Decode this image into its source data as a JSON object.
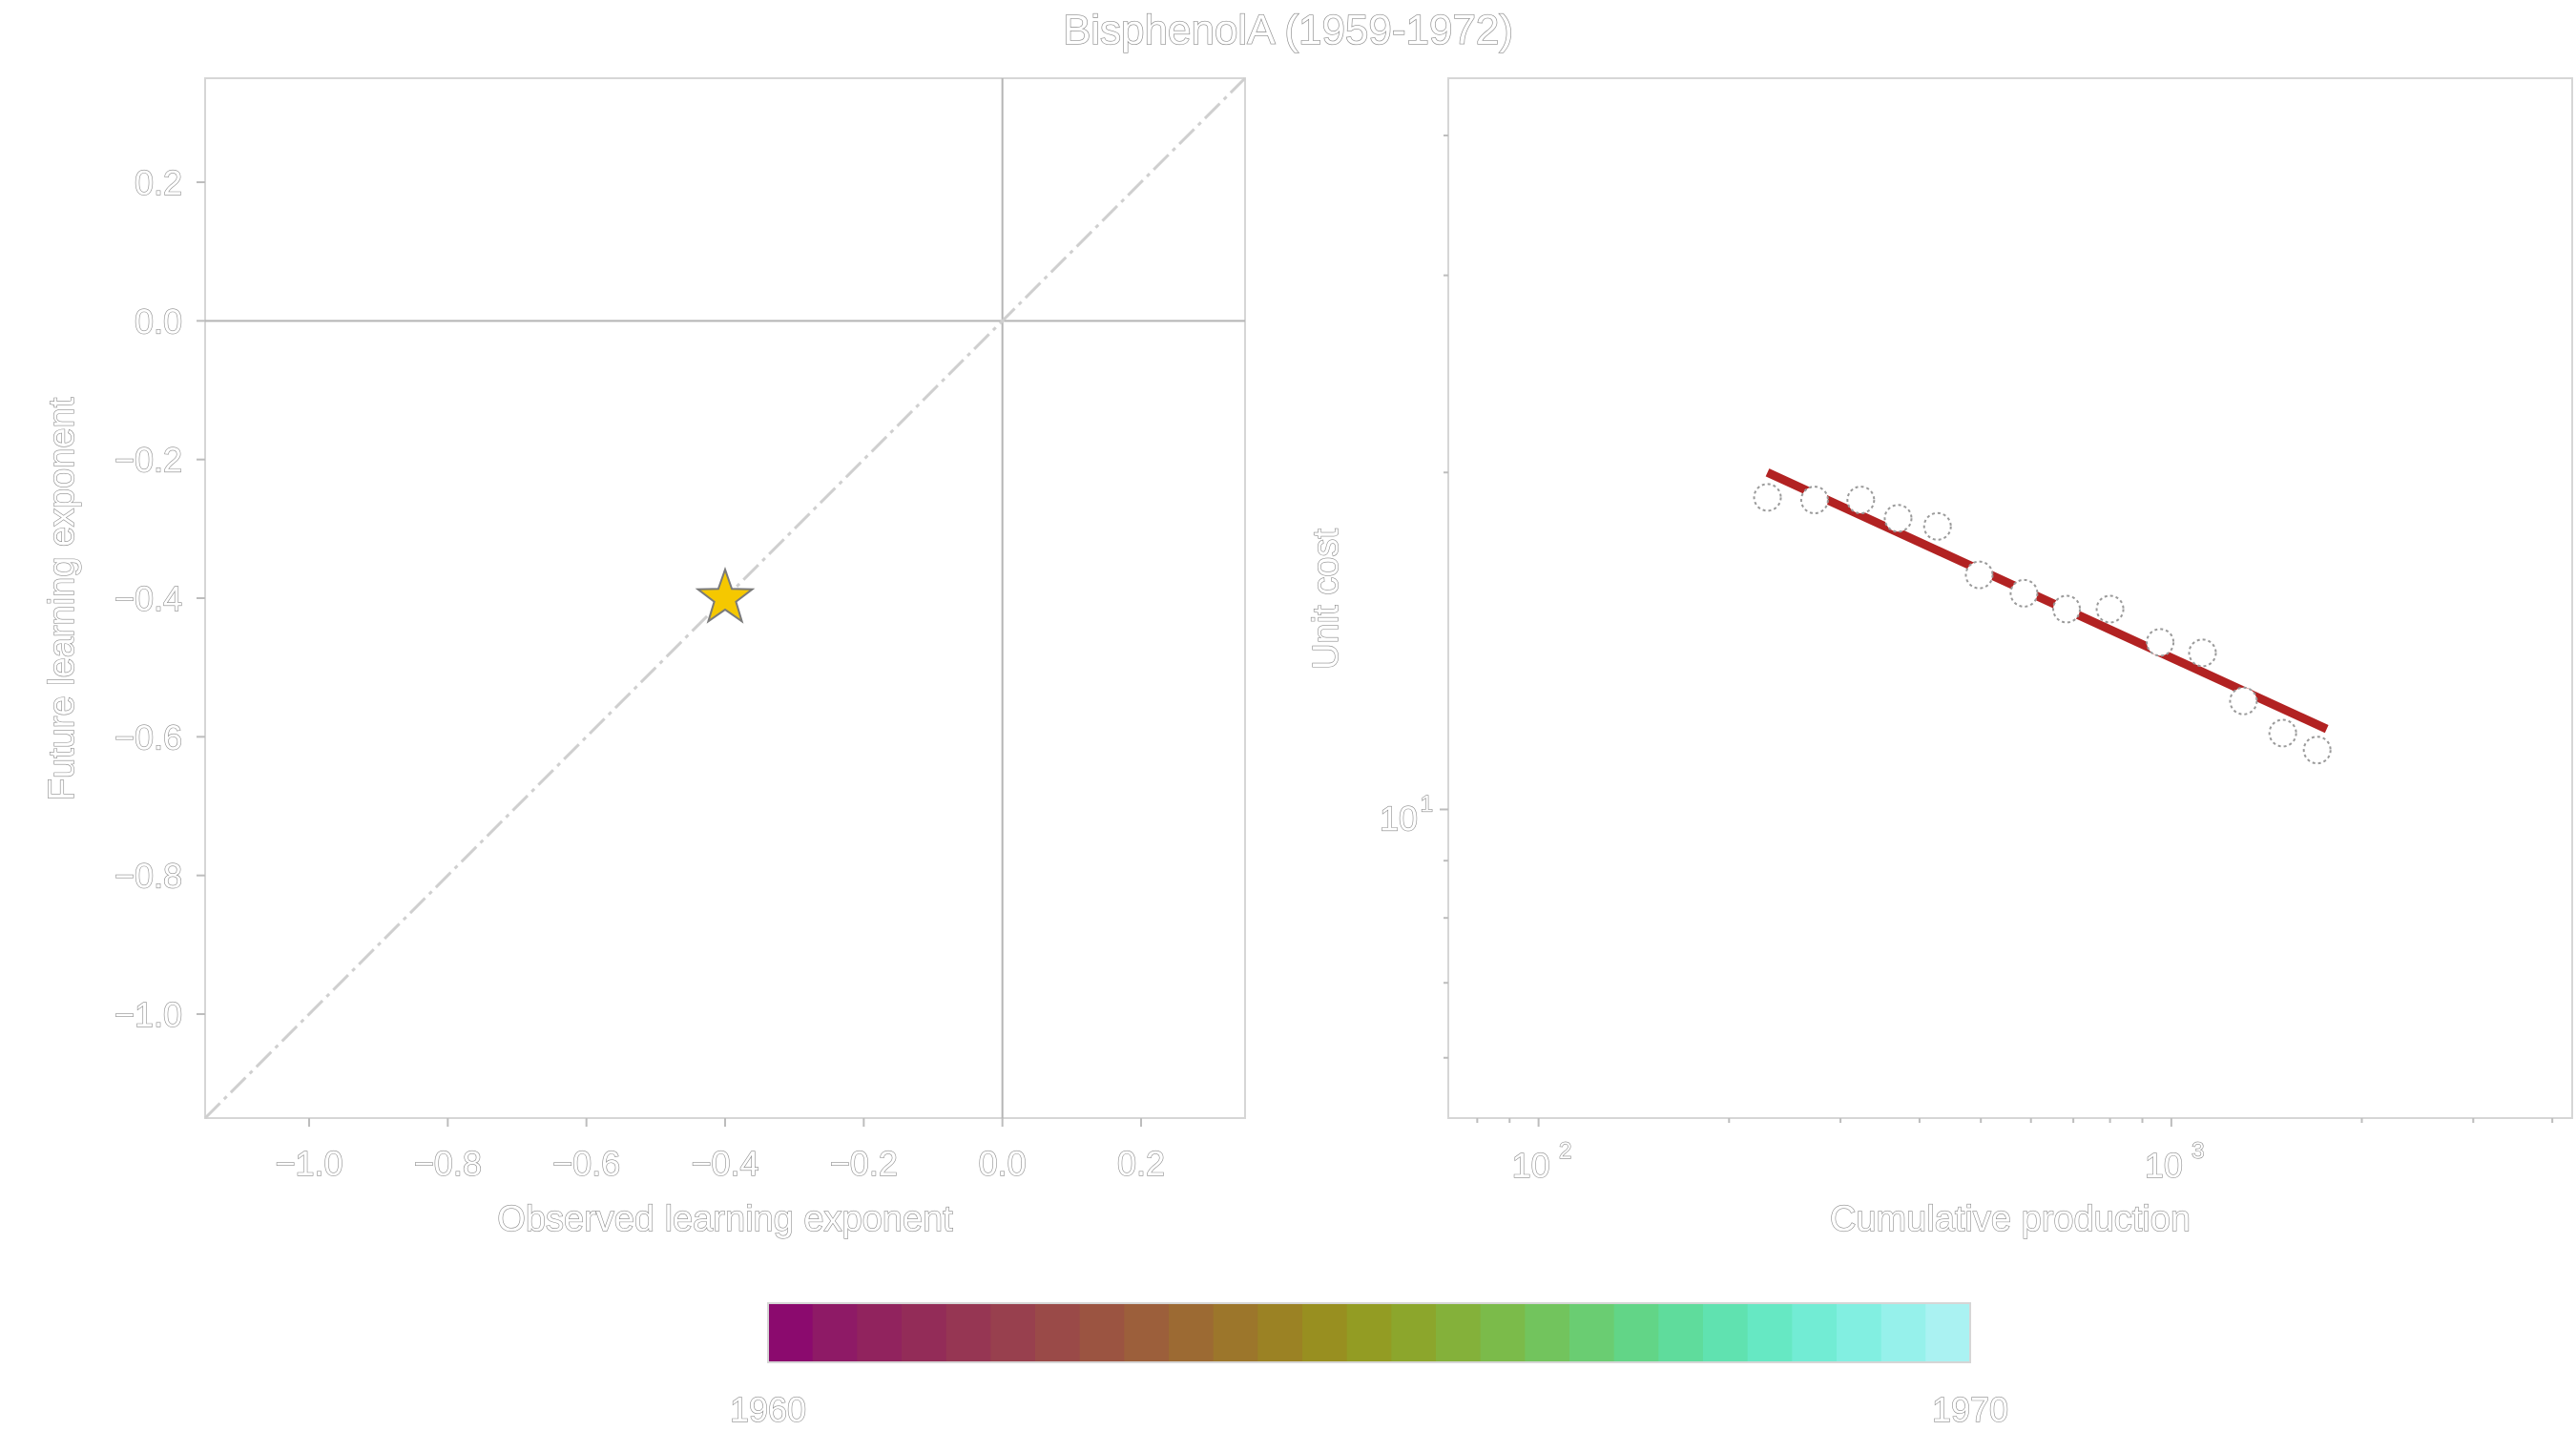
{
  "title": "BisphenolA (1959-1972)",
  "chart_data": [
    {
      "type": "scatter",
      "xlabel": "Observed learning exponent",
      "ylabel": "Future learning exponent",
      "xlim": [
        -1.15,
        0.35
      ],
      "ylim": [
        -1.15,
        0.35
      ],
      "xticks": [
        -1.0,
        -0.8,
        -0.6,
        -0.4,
        -0.2,
        0.0,
        0.2
      ],
      "xtick_labels": [
        "−1.0",
        "−0.8",
        "−0.6",
        "−0.4",
        "−0.2",
        "0.0",
        "0.2"
      ],
      "yticks": [
        0.2,
        0.0,
        -0.2,
        -0.4,
        -0.6,
        -0.8,
        -1.0
      ],
      "ytick_labels": [
        "0.2",
        "0.0",
        "−0.2",
        "−0.4",
        "−0.6",
        "−0.8",
        "−1.0"
      ],
      "reference_lines": [
        "x=0",
        "y=0",
        "y=x dashed"
      ],
      "points": [
        {
          "x": -0.4,
          "y": -0.4,
          "marker": "star",
          "color": "#f5c800"
        }
      ],
      "grid": false
    },
    {
      "type": "scatter",
      "scale": "log-log",
      "xlabel": "Cumulative production",
      "ylabel": "Unit cost",
      "xlim": [
        72,
        4300
      ],
      "ylim": [
        5.3,
        45
      ],
      "xticks": [
        100,
        1000
      ],
      "xtick_labels": [
        "10",
        "10"
      ],
      "xtick_exponents": [
        "2",
        "3"
      ],
      "yticks": [
        10
      ],
      "ytick_labels": [
        "10"
      ],
      "ytick_exponents": [
        "1"
      ],
      "x": [
        230,
        273,
        323,
        370,
        427,
        497,
        585,
        683,
        800,
        960,
        1120,
        1300,
        1500,
        1700
      ],
      "y": [
        19.0,
        18.9,
        18.9,
        18.2,
        17.9,
        16.2,
        15.6,
        15.1,
        15.1,
        14.1,
        13.8,
        12.5,
        11.7,
        11.3
      ],
      "fit_line": {
        "x": [
          230,
          1760
        ],
        "y": [
          20.0,
          11.8
        ],
        "color": "#b22222"
      },
      "grid": false
    }
  ],
  "colorbar": {
    "min_label": "1960",
    "max_label": "1970",
    "colors": [
      "#8b0a6e",
      "#8e1a66",
      "#91235e",
      "#932c58",
      "#963653",
      "#98404e",
      "#9a4a48",
      "#9b5441",
      "#9c5f3b",
      "#9c6a33",
      "#9c762b",
      "#9b8224",
      "#988f20",
      "#939c23",
      "#8ca62c",
      "#84b13a",
      "#7bbb4a",
      "#72c45d",
      "#6acd72",
      "#62d587",
      "#5fdc9c",
      "#60e2b0",
      "#66e8c3",
      "#72ecd4",
      "#82efe1",
      "#96f1eb",
      "#aaf2f2"
    ]
  }
}
